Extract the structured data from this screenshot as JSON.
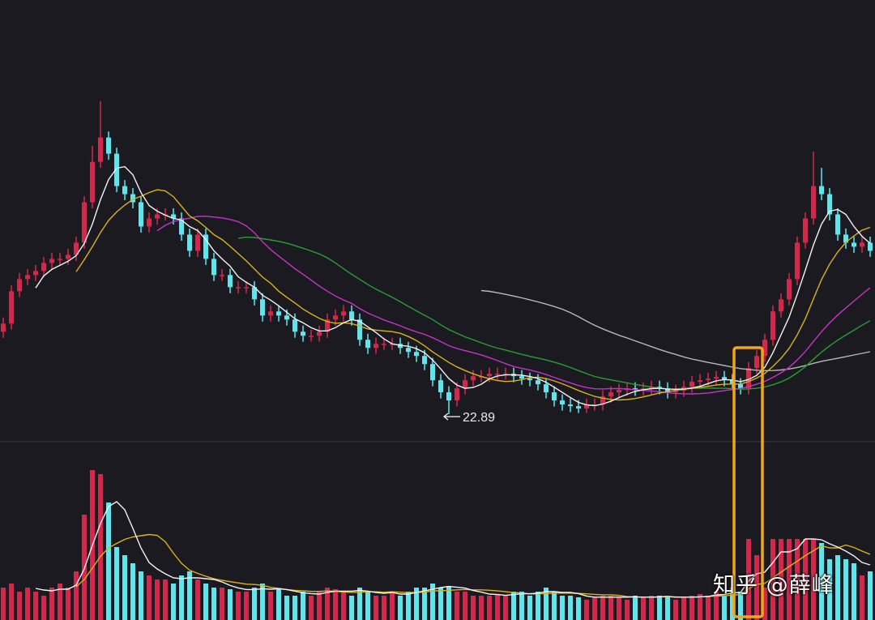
{
  "chart_data": {
    "type": "candlestick",
    "title": "",
    "xlabel": "",
    "ylabel": "",
    "grid": false,
    "ylim": [
      22.21,
      33.13
    ],
    "open": [
      24.93,
      25.13,
      25.93,
      26.23,
      26.33,
      26.43,
      26.63,
      26.73,
      26.73,
      26.83,
      27.13,
      28.13,
      29.13,
      29.73,
      29.33,
      28.53,
      28.33,
      28.13,
      27.53,
      27.73,
      27.83,
      27.83,
      27.73,
      27.33,
      26.93,
      27.33,
      26.73,
      26.33,
      26.33,
      26.03,
      26.03,
      26.03,
      25.73,
      25.33,
      25.43,
      25.33,
      25.23,
      24.93,
      24.83,
      24.83,
      24.93,
      25.23,
      25.33,
      25.43,
      25.23,
      24.73,
      24.53,
      24.63,
      24.63,
      24.63,
      24.53,
      24.43,
      24.33,
      24.13,
      23.73,
      23.43,
      23.23,
      23.53,
      23.73,
      23.83,
      23.83,
      23.89,
      23.89,
      23.89,
      23.83,
      23.77,
      23.73,
      23.63,
      23.43,
      23.23,
      23.13,
      23.09,
      23.03,
      23.13,
      23.13,
      23.33,
      23.43,
      23.49,
      23.53,
      23.49,
      23.53,
      23.57,
      23.53,
      23.43,
      23.47,
      23.57,
      23.69,
      23.73,
      23.77,
      23.81,
      23.73,
      23.63,
      23.53,
      24.03,
      24.33,
      24.73,
      25.43,
      25.73,
      26.23,
      27.13,
      27.73,
      28.53,
      28.33,
      27.83,
      27.33,
      27.13,
      27.03,
      27.13
    ],
    "high": [
      25.28,
      26.08,
      26.38,
      26.48,
      26.58,
      26.78,
      26.88,
      26.88,
      26.98,
      27.28,
      28.28,
      29.53,
      30.63,
      29.88,
      29.48,
      28.68,
      28.48,
      28.28,
      27.88,
      27.98,
      27.98,
      27.98,
      27.88,
      27.48,
      27.48,
      27.48,
      26.88,
      26.48,
      26.48,
      26.18,
      26.18,
      26.18,
      25.88,
      25.58,
      25.58,
      25.48,
      25.38,
      25.08,
      24.98,
      25.08,
      25.38,
      25.48,
      25.58,
      25.58,
      25.38,
      24.88,
      24.78,
      24.78,
      24.78,
      24.78,
      24.68,
      24.58,
      24.48,
      24.28,
      23.88,
      23.58,
      23.68,
      23.88,
      23.98,
      23.98,
      24.04,
      24.04,
      24.04,
      24.04,
      23.98,
      23.92,
      23.88,
      23.78,
      23.58,
      23.38,
      23.28,
      23.24,
      23.28,
      23.28,
      23.48,
      23.58,
      23.64,
      23.68,
      23.68,
      23.68,
      23.72,
      23.72,
      23.68,
      23.62,
      23.72,
      23.84,
      23.88,
      23.92,
      23.96,
      23.96,
      23.88,
      23.78,
      24.18,
      24.48,
      24.88,
      25.58,
      25.88,
      26.38,
      27.28,
      27.88,
      29.38,
      28.98,
      28.48,
      27.98,
      27.48,
      27.28,
      27.28,
      27.28
    ],
    "low": [
      24.78,
      24.98,
      25.78,
      26.08,
      26.18,
      26.28,
      26.48,
      26.58,
      26.58,
      26.68,
      26.98,
      27.98,
      28.98,
      29.18,
      28.38,
      28.18,
      27.98,
      27.38,
      27.38,
      27.58,
      27.68,
      27.58,
      27.18,
      26.78,
      26.78,
      26.58,
      26.18,
      26.18,
      25.88,
      25.88,
      25.88,
      25.58,
      25.18,
      25.18,
      25.18,
      25.08,
      24.78,
      24.68,
      24.68,
      24.68,
      24.78,
      25.08,
      25.18,
      25.08,
      24.58,
      24.38,
      24.38,
      24.48,
      24.48,
      24.38,
      24.28,
      24.18,
      23.98,
      23.58,
      23.28,
      22.89,
      23.08,
      23.38,
      23.58,
      23.68,
      23.68,
      23.74,
      23.74,
      23.68,
      23.62,
      23.58,
      23.48,
      23.28,
      23.08,
      22.98,
      22.94,
      22.92,
      22.92,
      22.98,
      22.98,
      23.18,
      23.28,
      23.34,
      23.34,
      23.34,
      23.38,
      23.38,
      23.28,
      23.28,
      23.32,
      23.42,
      23.54,
      23.58,
      23.62,
      23.58,
      23.48,
      23.38,
      23.38,
      23.88,
      24.18,
      24.58,
      25.28,
      25.58,
      26.08,
      26.98,
      27.58,
      28.18,
      27.68,
      27.18,
      26.98,
      26.88,
      26.88,
      26.78
    ],
    "close": [
      25.13,
      25.93,
      26.23,
      26.33,
      26.43,
      26.63,
      26.73,
      26.73,
      26.83,
      27.13,
      28.13,
      29.13,
      29.73,
      29.33,
      28.53,
      28.33,
      28.13,
      27.53,
      27.73,
      27.83,
      27.83,
      27.73,
      27.33,
      26.93,
      27.33,
      26.73,
      26.33,
      26.33,
      26.03,
      26.03,
      26.03,
      25.73,
      25.33,
      25.43,
      25.33,
      25.23,
      24.93,
      24.83,
      24.83,
      24.93,
      25.23,
      25.33,
      25.43,
      25.23,
      24.73,
      24.53,
      24.63,
      24.63,
      24.63,
      24.53,
      24.43,
      24.33,
      24.13,
      23.73,
      23.43,
      23.23,
      23.53,
      23.73,
      23.83,
      23.83,
      23.89,
      23.89,
      23.89,
      23.83,
      23.77,
      23.73,
      23.63,
      23.43,
      23.23,
      23.13,
      23.09,
      23.03,
      23.13,
      23.13,
      23.33,
      23.43,
      23.49,
      23.53,
      23.49,
      23.53,
      23.57,
      23.53,
      23.43,
      23.47,
      23.57,
      23.69,
      23.73,
      23.77,
      23.81,
      23.73,
      23.63,
      23.53,
      24.03,
      24.33,
      24.73,
      25.43,
      25.73,
      26.23,
      27.13,
      27.73,
      28.53,
      28.33,
      27.83,
      27.33,
      27.13,
      27.03,
      27.13,
      26.93
    ],
    "volume": [
      40,
      45,
      35,
      40,
      35,
      30,
      40,
      45,
      40,
      60,
      130,
      185,
      180,
      145,
      90,
      80,
      70,
      60,
      55,
      50,
      50,
      45,
      55,
      60,
      50,
      45,
      40,
      40,
      38,
      35,
      35,
      40,
      45,
      35,
      38,
      30,
      30,
      35,
      30,
      35,
      40,
      38,
      35,
      30,
      40,
      35,
      30,
      30,
      35,
      30,
      35,
      40,
      40,
      45,
      40,
      42,
      35,
      35,
      30,
      30,
      30,
      32,
      30,
      35,
      35,
      30,
      35,
      40,
      35,
      30,
      30,
      28,
      25,
      28,
      30,
      30,
      28,
      25,
      30,
      28,
      30,
      30,
      28,
      25,
      28,
      30,
      32,
      30,
      35,
      30,
      40,
      35,
      100,
      80,
      40,
      100,
      100,
      100,
      100,
      100,
      100,
      95,
      75,
      80,
      75,
      70,
      55,
      60
    ],
    "ylim_volume": [
      0,
      220
    ],
    "moving_averages": [
      {
        "period": 5,
        "color": "#f2f2f2"
      },
      {
        "period": 10,
        "color": "#d9b21c"
      },
      {
        "period": 20,
        "color": "#c832c8"
      },
      {
        "period": 30,
        "color": "#25a030"
      },
      {
        "period": 60,
        "color": "#b8b8b8"
      }
    ],
    "volume_moving_averages": [
      {
        "period": 5,
        "color": "#f2f2f2"
      },
      {
        "period": 10,
        "color": "#d9b21c"
      }
    ],
    "annotations": {
      "low_label": "22.89",
      "low_index": 55,
      "highlight_range": [
        90,
        93
      ],
      "highlight_color": "#f0a818"
    },
    "colors": {
      "up": "#d3284c",
      "down": "#5ee6ee",
      "background": "#1c1a21",
      "divider": "#3a3a44"
    }
  },
  "watermark": "知乎 @薛峰"
}
